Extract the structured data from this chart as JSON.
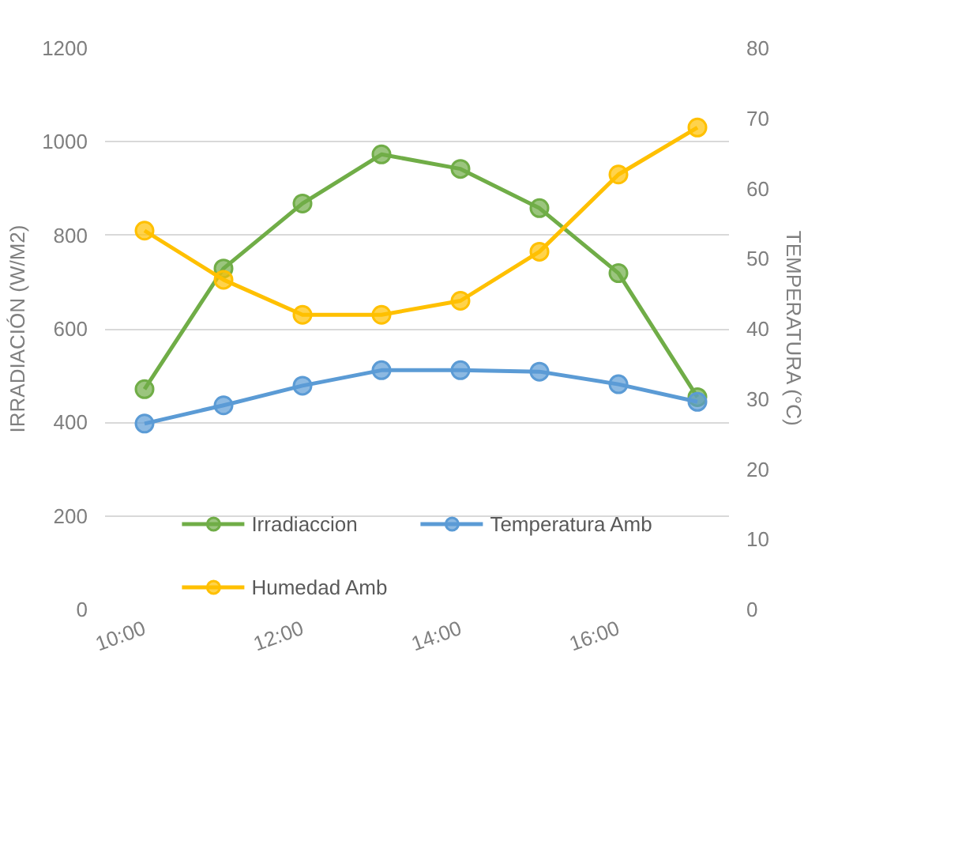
{
  "chart_data": {
    "type": "line",
    "ylabel": "IRRADIACIÓN (W/M2)",
    "y2label": "TEMPERATURA (°C)",
    "x": [
      10,
      11,
      12,
      13,
      14,
      15,
      16,
      17
    ],
    "xlim": [
      9.5,
      17.4
    ],
    "xticks": [
      {
        "value": 10,
        "label": "10:00"
      },
      {
        "value": 12,
        "label": "12:00"
      },
      {
        "value": 14,
        "label": "14:00"
      },
      {
        "value": 16,
        "label": "16:00"
      }
    ],
    "ylim": [
      0,
      1200
    ],
    "yticks": [
      0,
      200,
      400,
      600,
      800,
      1000,
      1200
    ],
    "y2lim": [
      0,
      80
    ],
    "y2ticks": [
      0,
      10,
      20,
      30,
      40,
      50,
      60,
      70,
      80
    ],
    "series": [
      {
        "name": "Irradiaccion",
        "color": "#70ad47",
        "values": [
          471,
          729,
          868,
          973,
          942,
          858,
          719,
          454
        ]
      },
      {
        "name": "Temperatura Amb",
        "color": "#5b9bd5",
        "axis": "y2",
        "values": [
          26.5,
          29.1,
          31.9,
          34.1,
          34.1,
          33.9,
          32.1,
          29.6
        ]
      },
      {
        "name": "Humedad Amb",
        "color": "#ffc000",
        "axis": "y2",
        "values": [
          54,
          47,
          42,
          42,
          44,
          51,
          62,
          68.7
        ]
      }
    ],
    "grid": "y",
    "legend": "bottom",
    "marker": "circle",
    "line_style": "solid"
  }
}
